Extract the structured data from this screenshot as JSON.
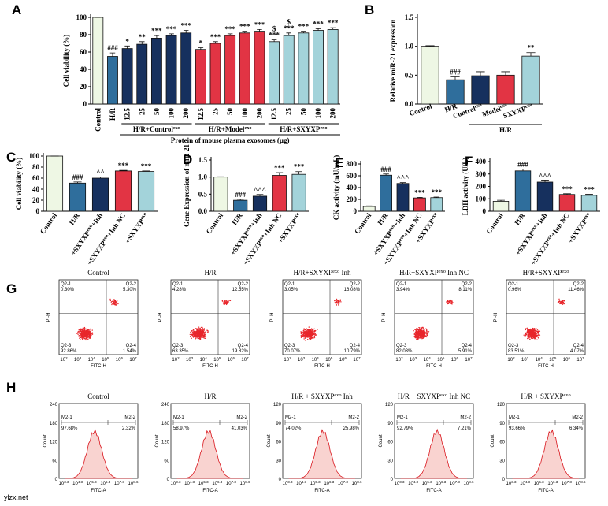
{
  "chart_data": [
    {
      "type": "bar",
      "panel": "A",
      "y_label": "Cell viability (%)",
      "categories": [
        "Control",
        "H/R",
        "12.5",
        "25",
        "50",
        "100",
        "200",
        "12.5",
        "25",
        "50",
        "100",
        "200",
        "12.5",
        "25",
        "50",
        "100",
        "200"
      ],
      "values": [
        100,
        55,
        64,
        69,
        76,
        79,
        82,
        63,
        70,
        79,
        82,
        84,
        72,
        79,
        82,
        85,
        86
      ],
      "errors": [
        0,
        4,
        3,
        3,
        3,
        2,
        3,
        2,
        2,
        2,
        2,
        2,
        2,
        3,
        2,
        2,
        2
      ],
      "colors": [
        "#eef7e4",
        "#2f6e9c",
        "#16305e",
        "#16305e",
        "#16305e",
        "#16305e",
        "#16305e",
        "#e23444",
        "#e23444",
        "#e23444",
        "#e23444",
        "#e23444",
        "#a3d3da",
        "#a3d3da",
        "#a3d3da",
        "#a3d3da",
        "#a3d3da"
      ],
      "annotations": [
        null,
        "###",
        "*",
        "**",
        "***",
        "***",
        "***",
        "*",
        "***",
        "***",
        "***",
        "***",
        [
          "$",
          "***"
        ],
        [
          "$",
          "***"
        ],
        "***",
        "***",
        "***"
      ],
      "group_labels": [
        {
          "text": "H/R+Control",
          "sup": "exo"
        },
        {
          "text": "H/R+Model",
          "sup": "exo"
        },
        {
          "text": "H/R+SXYXP",
          "sup": "exo"
        }
      ],
      "x_label": "Protein of mouse plasma exosomes (μg)",
      "ylim": [
        0,
        100
      ],
      "yticks": [
        0,
        20,
        40,
        60,
        80,
        100
      ]
    },
    {
      "type": "bar",
      "panel": "B",
      "y_label": "Relative miR-21 expression",
      "categories": [
        "Control",
        "H/R",
        {
          "text": "Control",
          "sup": "exo"
        },
        {
          "text": "Model",
          "sup": "exo"
        },
        {
          "text": "SXYXP",
          "sup": "exo"
        }
      ],
      "values": [
        1.0,
        0.42,
        0.49,
        0.5,
        0.83
      ],
      "errors": [
        0.01,
        0.05,
        0.07,
        0.06,
        0.06
      ],
      "colors": [
        "#eef7e4",
        "#2f6e9c",
        "#16305e",
        "#e23444",
        "#a3d3da"
      ],
      "annotations": [
        null,
        "###",
        null,
        null,
        "**"
      ],
      "group_labels": [
        "H/R"
      ],
      "ylim": [
        0,
        1.5
      ],
      "yticks": [
        {
          "value": 0,
          "label": "0.0"
        },
        0.5,
        {
          "value": 1,
          "label": "1.0"
        },
        1.5
      ]
    },
    {
      "type": "bar",
      "panel": "C",
      "y_label": "Cell viability (%)",
      "categories": [
        "Control",
        "H/R",
        {
          "text": "+SXYXP",
          "sup": "exo",
          "after": "+Inh"
        },
        {
          "text": "+SXYXP",
          "sup": "exo",
          "after": "+Inh NC"
        },
        {
          "text": "+SXYXP",
          "sup": "exo"
        }
      ],
      "values": [
        100,
        51,
        60,
        73,
        72
      ],
      "errors": [
        0,
        2,
        2,
        1,
        1
      ],
      "colors": [
        "#eef7e4",
        "#2f6e9c",
        "#16305e",
        "#e23444",
        "#a3d3da"
      ],
      "annotations": [
        null,
        "###",
        "^^",
        "***",
        "***"
      ],
      "ylim": [
        0,
        100
      ],
      "yticks": [
        0,
        20,
        40,
        60,
        80,
        100
      ]
    },
    {
      "type": "bar",
      "panel": "D",
      "y_label": "Gene Expression of miR-21",
      "categories": [
        "Control",
        "H/R",
        {
          "text": "+SXYXP",
          "sup": "exo",
          "after": "+Inh"
        },
        {
          "text": "+SXYXP",
          "sup": "exo",
          "after": "+Inh NC"
        },
        {
          "text": "+SXYXP",
          "sup": "exo"
        }
      ],
      "values": [
        1.0,
        0.32,
        0.44,
        1.05,
        1.08
      ],
      "errors": [
        0.01,
        0.03,
        0.05,
        0.08,
        0.08
      ],
      "colors": [
        "#eef7e4",
        "#2f6e9c",
        "#16305e",
        "#e23444",
        "#a3d3da"
      ],
      "annotations": [
        null,
        "###",
        "^^^",
        "***",
        "***"
      ],
      "ylim": [
        0,
        1.5
      ],
      "yticks": [
        {
          "value": 0,
          "label": "0.0"
        },
        0.5,
        {
          "value": 1,
          "label": "1.0"
        },
        1.5
      ]
    },
    {
      "type": "bar",
      "panel": "E",
      "y_label": "CK activity (mU/mL)",
      "categories": [
        "Control",
        "H/R",
        {
          "text": "+SXYXP",
          "sup": "exo",
          "after": "+Inh"
        },
        {
          "text": "+SXYXP",
          "sup": "exo",
          "after": "+Inh NC"
        },
        {
          "text": "+SXYXP",
          "sup": "exo"
        }
      ],
      "values": [
        80,
        610,
        470,
        225,
        230
      ],
      "errors": [
        10,
        20,
        15,
        10,
        10
      ],
      "colors": [
        "#eef7e4",
        "#2f6e9c",
        "#16305e",
        "#e23444",
        "#a3d3da"
      ],
      "annotations": [
        null,
        "###",
        "^^^",
        "***",
        "***"
      ],
      "ylim": [
        0,
        800
      ],
      "yticks": [
        0,
        200,
        400,
        600,
        800
      ]
    },
    {
      "type": "bar",
      "panel": "F",
      "y_label": "LDH activity (U/L)",
      "categories": [
        "Control",
        "H/R",
        {
          "text": "+SXYXP",
          "sup": "exo",
          "after": "+Inh"
        },
        {
          "text": "+SXYXP",
          "sup": "exo",
          "after": "+Inh NC"
        },
        {
          "text": "+SXYXP",
          "sup": "exo"
        }
      ],
      "values": [
        80,
        325,
        235,
        135,
        128
      ],
      "errors": [
        8,
        15,
        10,
        6,
        8
      ],
      "colors": [
        "#eef7e4",
        "#2f6e9c",
        "#16305e",
        "#e23444",
        "#a3d3da"
      ],
      "annotations": [
        null,
        "###",
        "^^^",
        "***",
        "***"
      ],
      "ylim": [
        0,
        400
      ],
      "yticks": [
        0,
        100,
        200,
        300,
        400
      ]
    }
  ],
  "flow_scatter": {
    "panel": "G",
    "x_label": "FITC-H",
    "y_label": "PI-H",
    "tick_base": "10",
    "tick_exponents": [
      "2",
      "3",
      "4",
      "5",
      "6",
      "7"
    ],
    "quadrants": [
      "Q2-1",
      "Q2-2",
      "Q2-3",
      "Q2-4"
    ],
    "plots": [
      {
        "title": "Control",
        "percents": [
          "0.30%",
          "5.30%",
          "92.86%",
          "1.54%"
        ]
      },
      {
        "title": "H/R",
        "percents": [
          "4.28%",
          "12.55%",
          "63.35%",
          "19.82%"
        ]
      },
      {
        "title": {
          "text": "H/R+SXYXP",
          "sup": "exo",
          "after": " Inh"
        },
        "percents": [
          "3.05%",
          "16.08%",
          "70.07%",
          "10.79%"
        ]
      },
      {
        "title": {
          "text": "H/R+SXYXP",
          "sup": "exo",
          "after": " Inh NC"
        },
        "percents": [
          "3.94%",
          "8.11%",
          "82.03%",
          "5.91%"
        ]
      },
      {
        "title": {
          "text": "H/R+SXYXP",
          "sup": "exo"
        },
        "percents": [
          "0.96%",
          "11.46%",
          "83.51%",
          "4.07%"
        ]
      }
    ]
  },
  "flow_histogram": {
    "panel": "H",
    "x_label": "FITC-A",
    "y_label": "Count",
    "tick_base": "10",
    "tick_exponents": [
      "3.3",
      "4.3",
      "5.3",
      "6.3",
      "7.3",
      "8.6"
    ],
    "gates": [
      "M2-1",
      "M2-2"
    ],
    "plots": [
      {
        "title": "Control",
        "yticks": [
          "240",
          "180",
          "120",
          "60",
          "0"
        ],
        "percents": [
          "97.68%",
          "2.32%"
        ]
      },
      {
        "title": "H/R",
        "yticks": [
          "240",
          "180",
          "120",
          "60",
          "0"
        ],
        "percents": [
          "58.97%",
          "41.03%"
        ]
      },
      {
        "title": {
          "text": "H/R + SXYXP",
          "sup": "exo",
          "after": " Inh"
        },
        "yticks": [
          "120",
          "90",
          "60",
          "30",
          "0"
        ],
        "percents": [
          "74.02%",
          "25.98%"
        ]
      },
      {
        "title": {
          "text": "H/R + SXYXP",
          "sup": "exo",
          "after": " Inh NC"
        },
        "yticks": [
          "120",
          "90",
          "60",
          "30",
          "0"
        ],
        "percents": [
          "92.79%",
          "7.21%"
        ]
      },
      {
        "title": {
          "text": "H/R + SXYXP",
          "sup": "exo"
        },
        "yticks": [
          "120",
          "90",
          "60",
          "30",
          "0"
        ],
        "percents": [
          "93.66%",
          "6.34%"
        ]
      }
    ]
  },
  "watermark": "ylzx.net"
}
